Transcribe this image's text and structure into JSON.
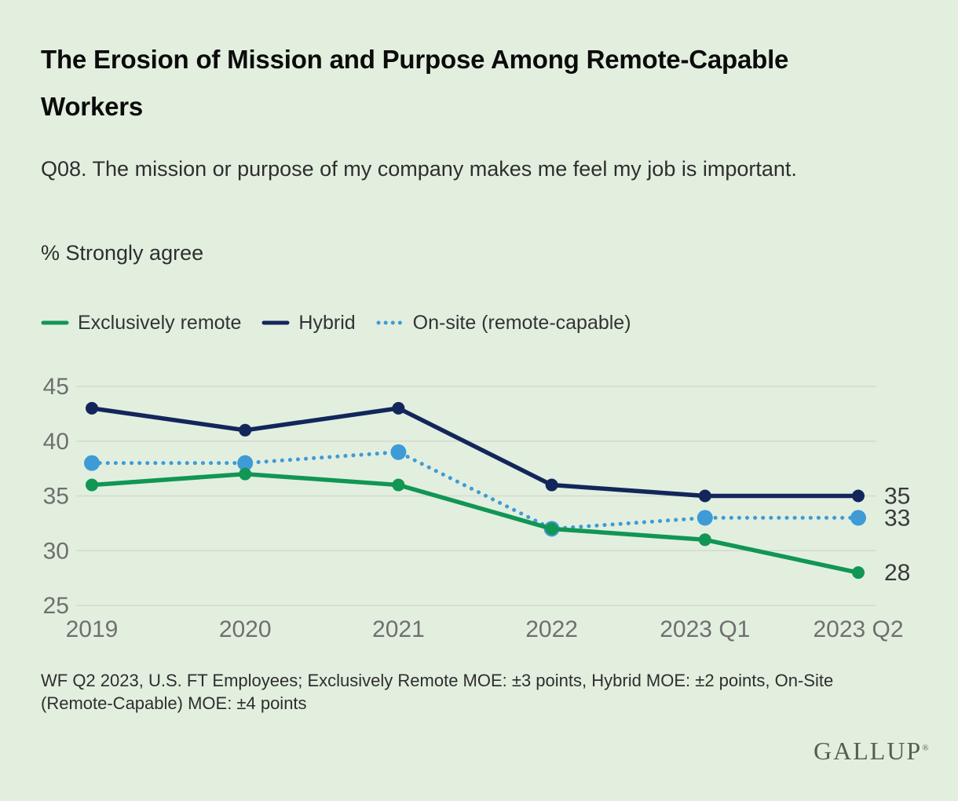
{
  "title": "The Erosion of Mission and Purpose Among Remote-Capable Workers",
  "subtitle": "Q08. The mission or purpose of my company makes me feel my job is important.",
  "metric_label": "% Strongly agree",
  "footnote": "WF Q2 2023, U.S. FT Employees; Exclusively Remote MOE: ±3 points, Hybrid MOE: ±2 points, On-Site (Remote-Capable) MOE: ±4 points",
  "brand": {
    "logo_text": "GALLUP",
    "registered_mark": "®"
  },
  "colors": {
    "background": "#e2efdf",
    "grid": "#d3dad0",
    "axis_text": "#6f6f6f",
    "value_label": "#3a3a3a",
    "legend_text": "#333333"
  },
  "chart_data": {
    "type": "line",
    "categories": [
      "2019",
      "2020",
      "2021",
      "2022",
      "2023 Q1",
      "2023 Q2"
    ],
    "series": [
      {
        "name": "Exclusively remote",
        "values": [
          36,
          37,
          36,
          32,
          31,
          28
        ],
        "color": "#119654",
        "style": "solid",
        "end_label": "28"
      },
      {
        "name": "Hybrid",
        "values": [
          43,
          41,
          43,
          36,
          35,
          35
        ],
        "color": "#13265b",
        "style": "solid",
        "end_label": "35"
      },
      {
        "name": "On-site (remote-capable)",
        "values": [
          38,
          38,
          39,
          32,
          33,
          33
        ],
        "color": "#3f9bd5",
        "style": "dotted",
        "end_label": "33"
      }
    ],
    "title": "The Erosion of Mission and Purpose Among Remote-Capable Workers",
    "xlabel": "",
    "ylabel": "% Strongly agree",
    "ylim": [
      25,
      45
    ],
    "yticks": [
      25,
      30,
      35,
      40,
      45
    ],
    "grid": true,
    "legend_position": "top"
  }
}
